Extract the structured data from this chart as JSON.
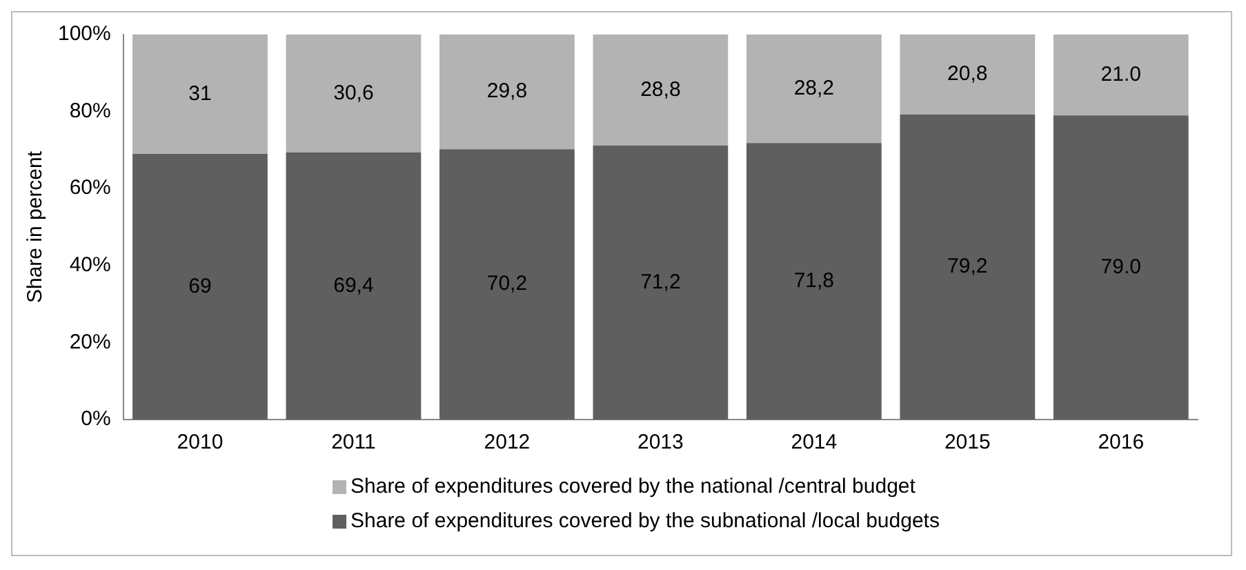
{
  "chart_data": {
    "type": "bar",
    "stacked": true,
    "ylabel": "Share in percent",
    "categories": [
      "2010",
      "2011",
      "2012",
      "2013",
      "2014",
      "2015",
      "2016"
    ],
    "series": [
      {
        "name": "Share of expenditures covered by the subnational /local budgets",
        "color": "#5f5f5f",
        "values": [
          69,
          69.4,
          70.2,
          71.2,
          71.8,
          79.2,
          79.0
        ],
        "value_labels": [
          "69",
          "69,4",
          "70,2",
          "71,2",
          "71,8",
          "79,2",
          "79.0"
        ]
      },
      {
        "name": "Share of expenditures covered by the national /central budget",
        "color": "#b3b3b3",
        "values": [
          31,
          30.6,
          29.8,
          28.8,
          28.2,
          20.8,
          21.0
        ],
        "value_labels": [
          "31",
          "30,6",
          "29,8",
          "28,8",
          "28,2",
          "20,8",
          "21.0"
        ]
      }
    ],
    "ylim": [
      0,
      100
    ],
    "yticks": [
      {
        "value": 0,
        "label": "0%"
      },
      {
        "value": 20,
        "label": "20%"
      },
      {
        "value": 40,
        "label": "40%"
      },
      {
        "value": 60,
        "label": "60%"
      },
      {
        "value": 80,
        "label": "80%"
      },
      {
        "value": 100,
        "label": "100%"
      }
    ],
    "grid": false,
    "legend": "bottom"
  }
}
